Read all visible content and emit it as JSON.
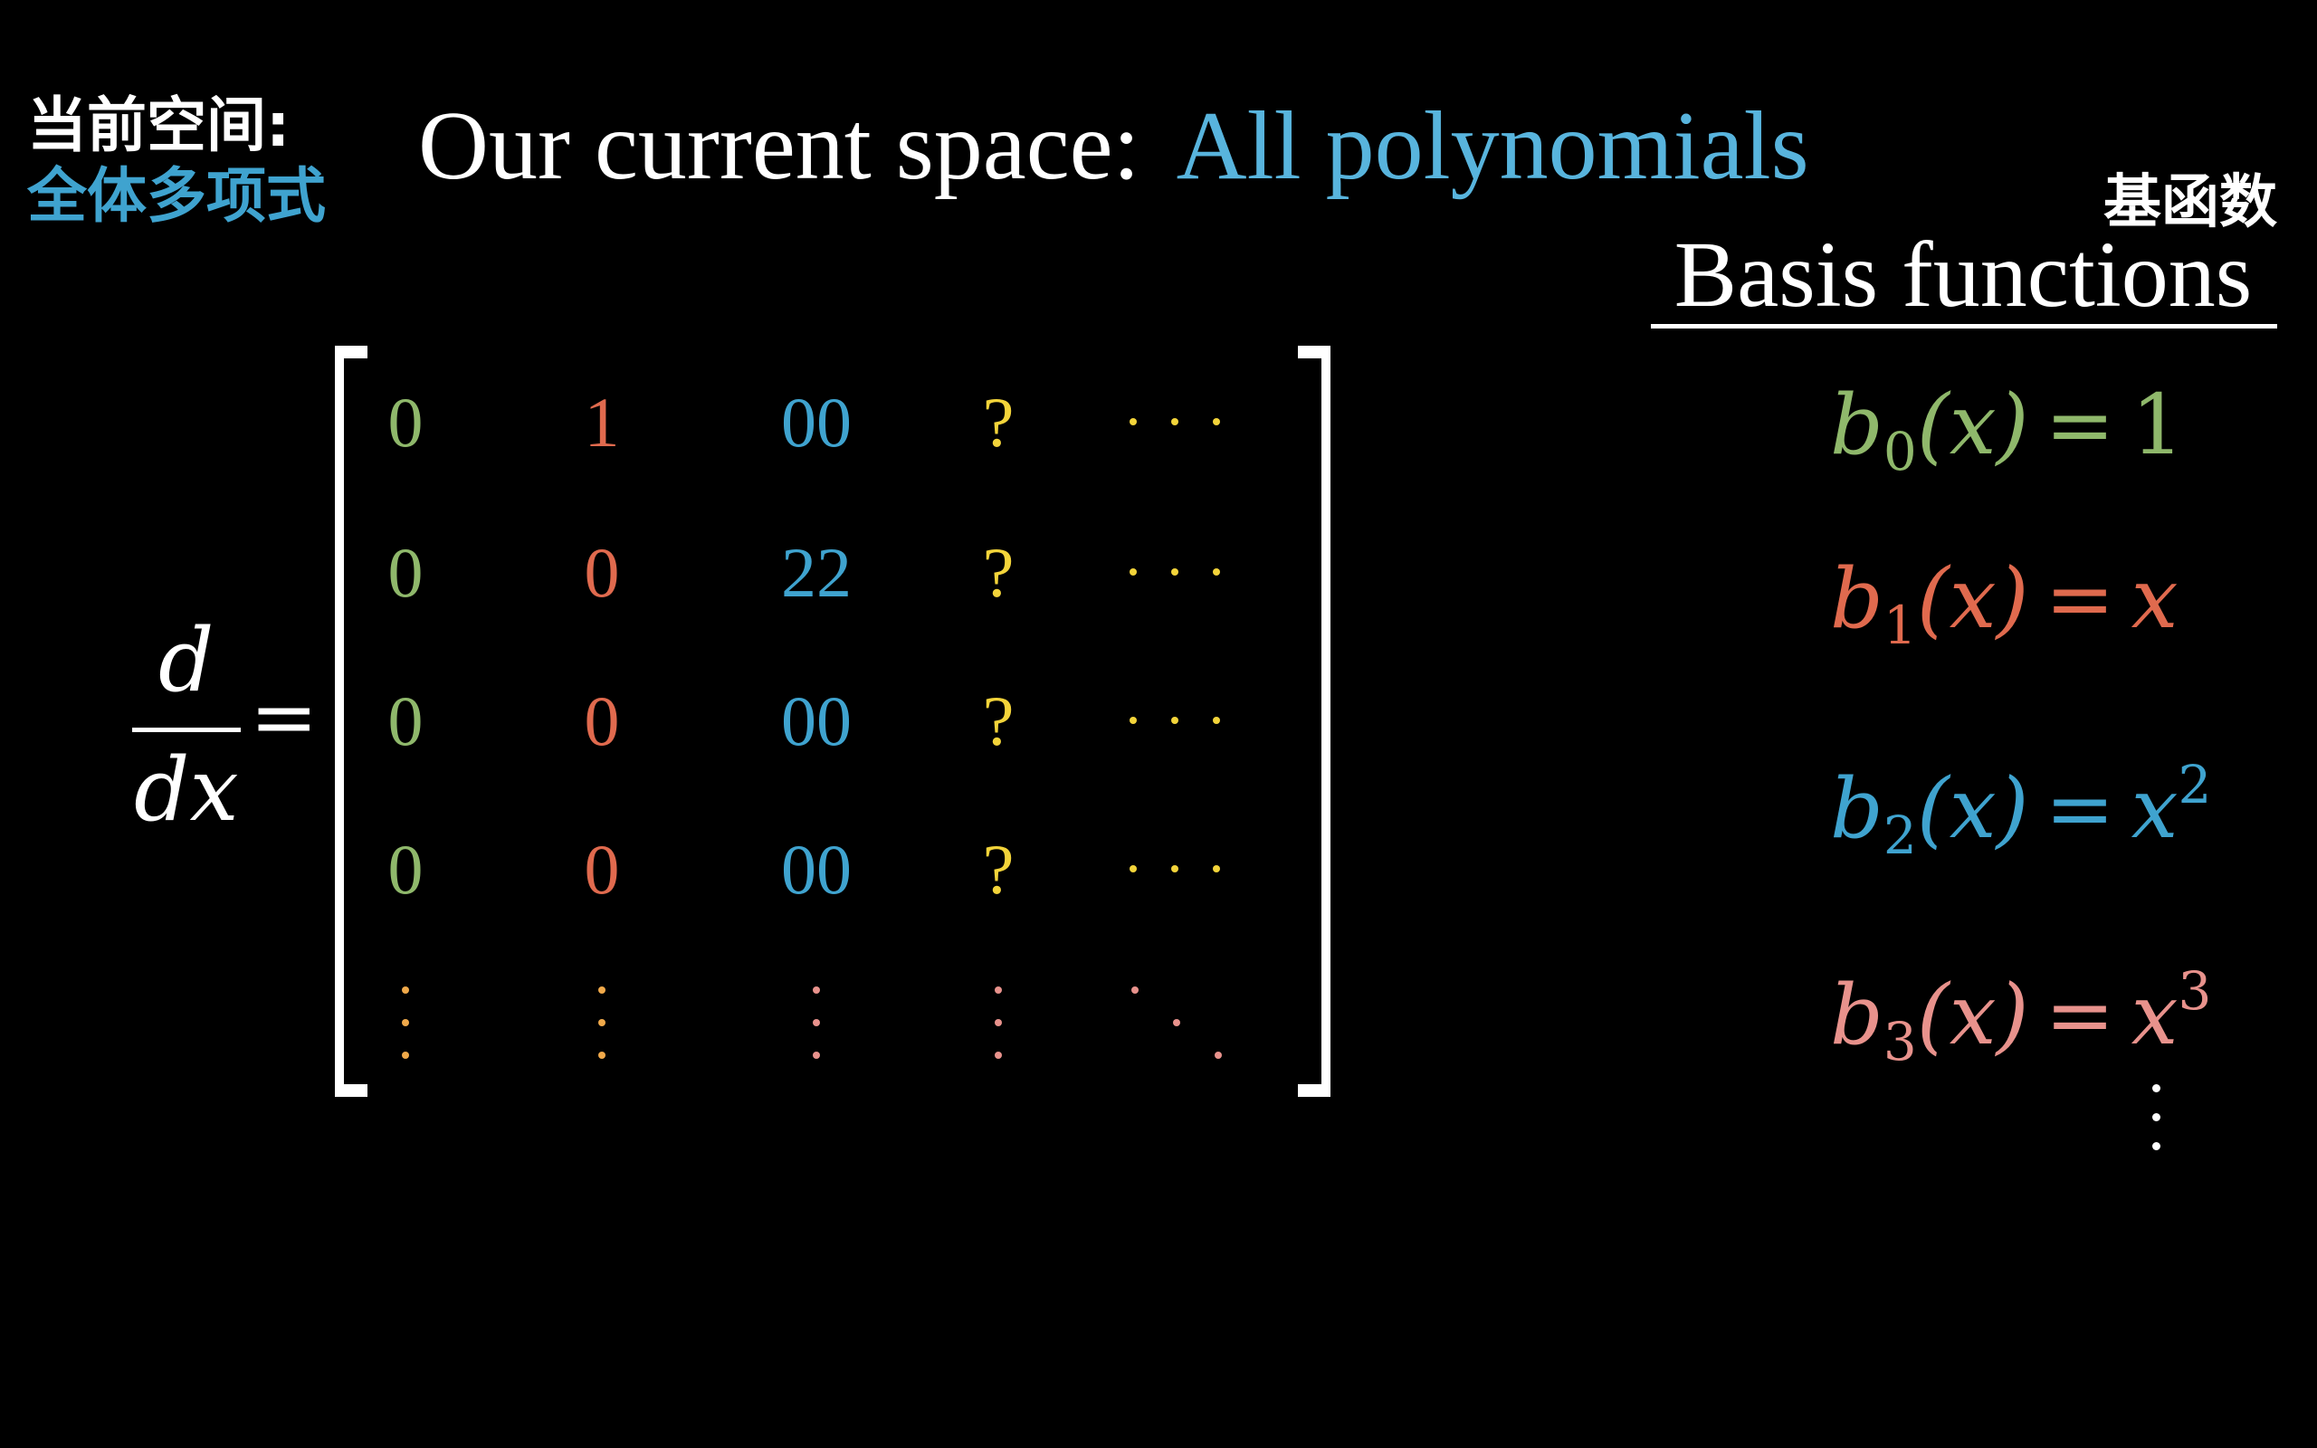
{
  "subtitle_cn": {
    "line1": "当前空间:",
    "line2": "全体多项式"
  },
  "title": {
    "label": "Our current space:",
    "value": "All polynomials"
  },
  "basis_header": {
    "cn": "基函数",
    "en": "Basis functions"
  },
  "operator": {
    "numerator": "d",
    "denominator": "dx",
    "equals": "="
  },
  "colors": {
    "green": "#8fb86b",
    "red": "#e06a4e",
    "blue": "#3fa3cf",
    "yellow": "#f3d43a",
    "pink": "#e8928c",
    "orange": "#f0a94a"
  },
  "matrix": {
    "rows": [
      [
        "0",
        "1",
        "00",
        "?",
        "hdots"
      ],
      [
        "0",
        "0",
        "22",
        "?",
        "hdots"
      ],
      [
        "0",
        "0",
        "00",
        "?",
        "hdots"
      ],
      [
        "0",
        "0",
        "00",
        "?",
        "hdots"
      ],
      [
        "vdots",
        "vdots",
        "vdots",
        "vdots",
        "ddots"
      ]
    ]
  },
  "basis_functions": [
    {
      "name": "b",
      "sub": "0",
      "arg": "(x)",
      "eq": "=",
      "rhs": "1",
      "rhs_italic": false,
      "sup": ""
    },
    {
      "name": "b",
      "sub": "1",
      "arg": "(x)",
      "eq": "=",
      "rhs": "x",
      "rhs_italic": true,
      "sup": ""
    },
    {
      "name": "b",
      "sub": "2",
      "arg": "(x)",
      "eq": "=",
      "rhs": "x",
      "rhs_italic": true,
      "sup": "2"
    },
    {
      "name": "b",
      "sub": "3",
      "arg": "(x)",
      "eq": "=",
      "rhs": "x",
      "rhs_italic": true,
      "sup": "3"
    }
  ]
}
